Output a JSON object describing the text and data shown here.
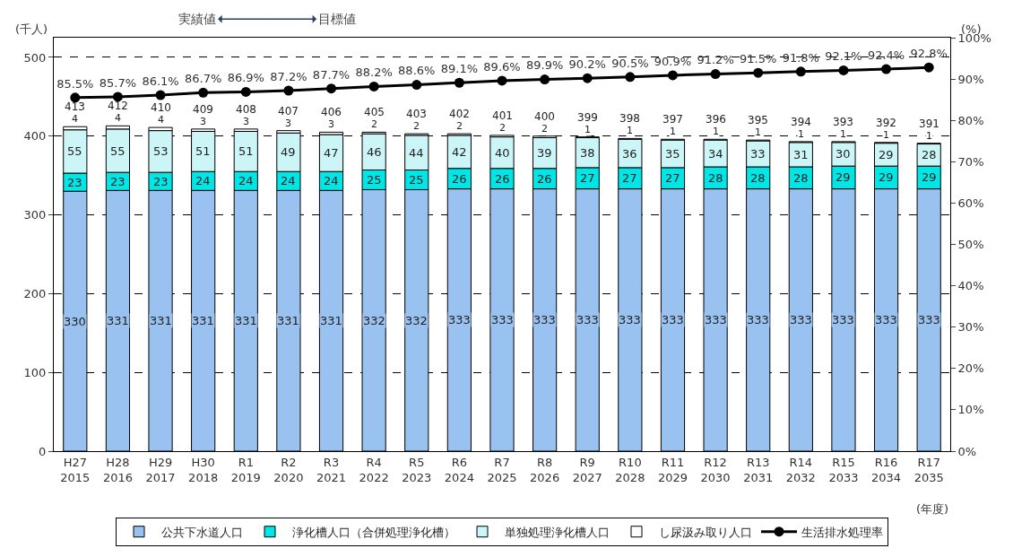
{
  "chart_data": {
    "type": "bar",
    "stacked": true,
    "categories": [
      "H27\n2015",
      "H28\n2016",
      "H29\n2017",
      "H30\n2018",
      "R1\n2019",
      "R2\n2020",
      "R3\n2021",
      "R4\n2022",
      "R5\n2023",
      "R6\n2024",
      "R7\n2025",
      "R8\n2026",
      "R9\n2027",
      "R10\n2028",
      "R11\n2029",
      "R12\n2030",
      "R13\n2031",
      "R14\n2032",
      "R15\n2033",
      "R16\n2034",
      "R17\n2035"
    ],
    "series": [
      {
        "name": "公共下水道人口",
        "color": "#99c2f0",
        "values": [
          330,
          331,
          331,
          331,
          331,
          331,
          331,
          332,
          332,
          333,
          333,
          333,
          333,
          333,
          333,
          333,
          333,
          333,
          333,
          333,
          333
        ]
      },
      {
        "name": "浄化槽人口（合併処理浄化槽）",
        "color": "#00e5e5",
        "values": [
          23,
          23,
          23,
          24,
          24,
          24,
          24,
          25,
          25,
          26,
          26,
          26,
          27,
          27,
          27,
          28,
          28,
          28,
          29,
          29,
          29
        ]
      },
      {
        "name": "単独処理浄化槽人口",
        "color": "#ccf5f8",
        "values": [
          55,
          55,
          53,
          51,
          51,
          49,
          47,
          46,
          44,
          42,
          40,
          39,
          38,
          36,
          35,
          34,
          33,
          31,
          30,
          29,
          28
        ]
      },
      {
        "name": "し尿汲み取り人口",
        "color": "#ffffff",
        "values": [
          4,
          4,
          4,
          3,
          3,
          3,
          3,
          2,
          2,
          2,
          2,
          2,
          1,
          1,
          1,
          1,
          1,
          1,
          1,
          1,
          1
        ]
      },
      {
        "name": "生活排水処理率",
        "type": "line",
        "axis": "y2",
        "color": "#000000",
        "marker": "circle",
        "values": [
          85.5,
          85.7,
          86.1,
          86.7,
          86.9,
          87.2,
          87.7,
          88.2,
          88.6,
          89.1,
          89.6,
          89.9,
          90.2,
          90.5,
          90.9,
          91.2,
          91.5,
          91.8,
          92.1,
          92.4,
          92.8
        ],
        "value_labels": [
          "85.5%",
          "85.7%",
          "86.1%",
          "86.7%",
          "86.9%",
          "87.2%",
          "87.7%",
          "88.2%",
          "88.6%",
          "89.1%",
          "89.6%",
          "89.9%",
          "90.2%",
          "90.5%",
          "90.9%",
          "91.2%",
          "91.5%",
          "91.8%",
          "92.1%",
          "92.4%",
          "92.8%"
        ]
      }
    ],
    "data_labels": true,
    "totals": [
      "413",
      "412",
      "410",
      "409",
      "408",
      "407",
      "406",
      "405",
      "403",
      "402",
      "401",
      "400",
      "399",
      "398",
      "397",
      "396",
      "395",
      "394",
      "393",
      "392",
      "391"
    ],
    "ylabel": "(千人)",
    "y2label": "(%)",
    "xlabel": "(年度)",
    "ylim": [
      0,
      525
    ],
    "yticks": [
      0,
      100,
      200,
      300,
      400,
      500
    ],
    "y2lim": [
      0,
      100
    ],
    "y2ticks": [
      {
        "value": 0,
        "label": "0%"
      },
      {
        "value": 10,
        "label": "10%"
      },
      {
        "value": 20,
        "label": "20%"
      },
      {
        "value": 30,
        "label": "30%"
      },
      {
        "value": 40,
        "label": "40%"
      },
      {
        "value": 50,
        "label": "50%"
      },
      {
        "value": 60,
        "label": "60%"
      },
      {
        "value": 70,
        "label": "70%"
      },
      {
        "value": 80,
        "label": "80%"
      },
      {
        "value": 90,
        "label": "90%"
      },
      {
        "value": 100,
        "label": "100%"
      }
    ],
    "grid": "y",
    "legend": "bottom",
    "annotations": [
      "実績値",
      "目標値"
    ]
  }
}
